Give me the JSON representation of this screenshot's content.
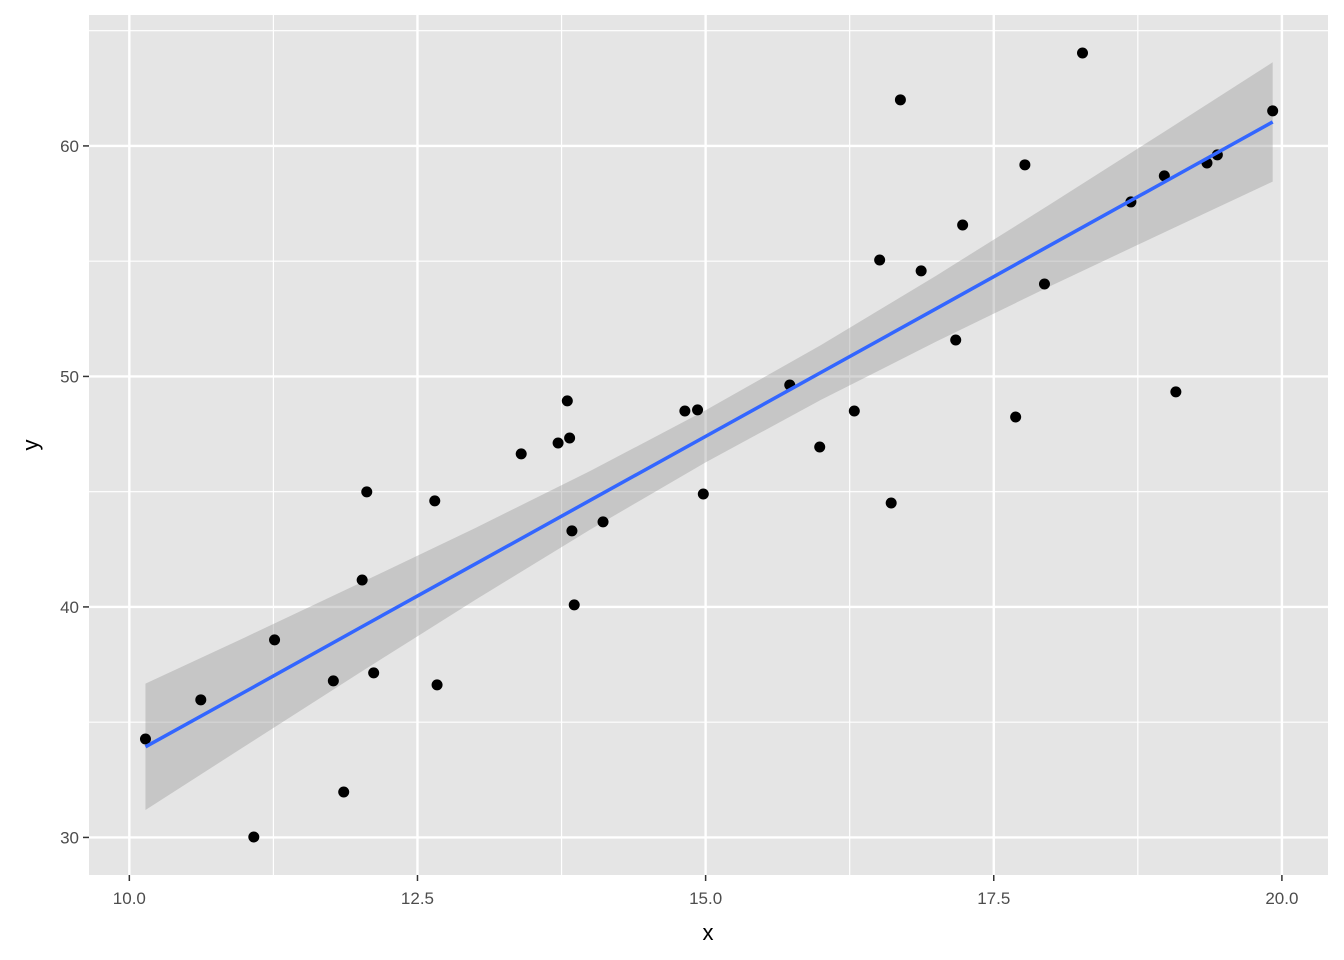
{
  "chart_data": {
    "type": "scatter",
    "title": "",
    "xlabel": "x",
    "ylabel": "y",
    "xlim": [
      9.65,
      20.4
    ],
    "ylim": [
      28.37,
      65.68
    ],
    "xticks": [
      10.0,
      12.5,
      15.0,
      17.5,
      20.0
    ],
    "xtick_labels": [
      "10.0",
      "12.5",
      "15.0",
      "17.5",
      "20.0"
    ],
    "yticks": [
      30,
      40,
      50,
      60
    ],
    "ytick_labels": [
      "30",
      "40",
      "50",
      "60"
    ],
    "grid": true,
    "colors": {
      "panel": "#e5e5e5",
      "grid": "#ffffff",
      "points": "#000000",
      "fit_line": "#3366ff",
      "ribbon": "#bdbdbd"
    },
    "points": {
      "x": [
        10.14,
        10.62,
        11.08,
        11.26,
        11.77,
        11.86,
        12.02,
        12.06,
        12.12,
        12.65,
        12.67,
        13.4,
        13.72,
        13.8,
        13.82,
        13.84,
        13.86,
        14.11,
        14.82,
        14.93,
        14.98,
        15.73,
        15.99,
        16.29,
        16.51,
        16.61,
        16.69,
        16.87,
        17.17,
        17.23,
        17.69,
        17.77,
        17.94,
        18.27,
        18.69,
        18.98,
        19.08,
        19.35,
        19.44,
        19.92
      ],
      "y": [
        34.27,
        35.97,
        30.02,
        38.57,
        36.79,
        31.97,
        41.17,
        44.99,
        37.14,
        44.6,
        36.62,
        46.64,
        47.11,
        48.94,
        47.33,
        43.3,
        40.09,
        43.69,
        48.5,
        48.55,
        44.9,
        49.63,
        46.94,
        48.5,
        55.05,
        44.51,
        62.0,
        54.58,
        51.58,
        56.57,
        48.24,
        59.18,
        54.01,
        64.03,
        57.57,
        58.7,
        49.33,
        59.26,
        59.61,
        61.52
      ]
    },
    "fit": {
      "x": [
        10.14,
        11,
        12,
        13,
        14,
        15,
        16,
        17,
        18,
        19,
        19.92
      ],
      "y": [
        33.93,
        36.31,
        39.09,
        41.86,
        44.63,
        47.4,
        50.17,
        52.94,
        55.72,
        58.49,
        61.04
      ],
      "lower": [
        31.19,
        33.95,
        37.15,
        40.3,
        43.36,
        46.27,
        48.98,
        51.51,
        53.94,
        56.3,
        58.45
      ],
      "upper": [
        36.67,
        38.67,
        41.03,
        43.42,
        45.9,
        48.53,
        51.36,
        54.37,
        57.5,
        60.68,
        63.63
      ]
    }
  }
}
